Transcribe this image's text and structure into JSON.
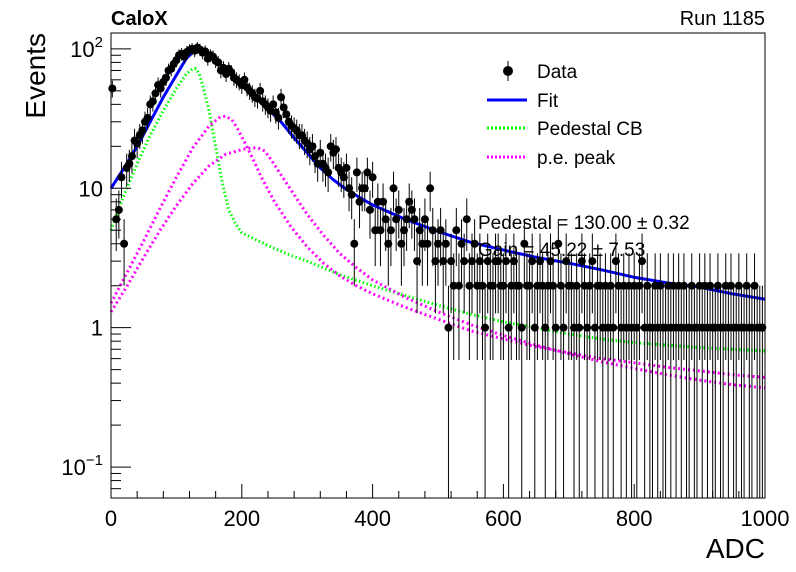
{
  "header": {
    "left": "CaloX",
    "right": "Run 1185"
  },
  "chart_data": {
    "type": "scatter",
    "xlabel": "ADC",
    "ylabel": "Events",
    "xlim": [
      0,
      1000
    ],
    "ylim": [
      0.06,
      130
    ],
    "yscale": "log",
    "grid": false,
    "legend_position": "top-right",
    "x_ticks": [
      "0",
      "200",
      "400",
      "600",
      "800",
      "1000"
    ],
    "y_ticks": [
      {
        "value": 0.1,
        "base": "10",
        "exp": "−1"
      },
      {
        "value": 1,
        "base": "1",
        "exp": ""
      },
      {
        "value": 10,
        "base": "10",
        "exp": ""
      },
      {
        "value": 100,
        "base": "10",
        "exp": "2"
      }
    ],
    "legend": [
      {
        "label": "Data",
        "style": "marker"
      },
      {
        "label": "Fit",
        "style": "line",
        "color": "#0000ff"
      },
      {
        "label": "Pedestal CB",
        "style": "dotted",
        "color": "#00ff00"
      },
      {
        "label": "p.e. peak",
        "style": "dotted",
        "color": "#ff00ff"
      }
    ],
    "annotations": [
      "Pedestal = 130.00 ± 0.32",
      "Gain = 45.22 ± 7.53"
    ],
    "data_points": [
      [
        2,
        52
      ],
      [
        8,
        6
      ],
      [
        12,
        7
      ],
      [
        16,
        12
      ],
      [
        20,
        4
      ],
      [
        24,
        14
      ],
      [
        28,
        15
      ],
      [
        32,
        17
      ],
      [
        36,
        22
      ],
      [
        40,
        21
      ],
      [
        44,
        24
      ],
      [
        48,
        26
      ],
      [
        52,
        30
      ],
      [
        56,
        32
      ],
      [
        60,
        40
      ],
      [
        64,
        42
      ],
      [
        68,
        48
      ],
      [
        72,
        55
      ],
      [
        76,
        52
      ],
      [
        80,
        58
      ],
      [
        84,
        62
      ],
      [
        88,
        70
      ],
      [
        92,
        72
      ],
      [
        96,
        78
      ],
      [
        100,
        83
      ],
      [
        104,
        90
      ],
      [
        108,
        92
      ],
      [
        112,
        88
      ],
      [
        116,
        95
      ],
      [
        120,
        98
      ],
      [
        124,
        100
      ],
      [
        128,
        97
      ],
      [
        132,
        102
      ],
      [
        136,
        99
      ],
      [
        140,
        94
      ],
      [
        144,
        96
      ],
      [
        148,
        85
      ],
      [
        152,
        90
      ],
      [
        156,
        88
      ],
      [
        160,
        82
      ],
      [
        164,
        80
      ],
      [
        168,
        70
      ],
      [
        172,
        73
      ],
      [
        176,
        66
      ],
      [
        180,
        72
      ],
      [
        184,
        68
      ],
      [
        188,
        62
      ],
      [
        192,
        60
      ],
      [
        196,
        58
      ],
      [
        200,
        55
      ],
      [
        204,
        60
      ],
      [
        208,
        53
      ],
      [
        212,
        50
      ],
      [
        216,
        48
      ],
      [
        220,
        45
      ],
      [
        224,
        44
      ],
      [
        228,
        50
      ],
      [
        232,
        42
      ],
      [
        236,
        40
      ],
      [
        240,
        38
      ],
      [
        244,
        36
      ],
      [
        248,
        40
      ],
      [
        252,
        35
      ],
      [
        256,
        32
      ],
      [
        260,
        45
      ],
      [
        264,
        38
      ],
      [
        268,
        34
      ],
      [
        272,
        30
      ],
      [
        276,
        28
      ],
      [
        280,
        27
      ],
      [
        284,
        26
      ],
      [
        288,
        24
      ],
      [
        292,
        24
      ],
      [
        296,
        22
      ],
      [
        300,
        21
      ],
      [
        304,
        19
      ],
      [
        308,
        20
      ],
      [
        312,
        17
      ],
      [
        316,
        15
      ],
      [
        320,
        18
      ],
      [
        324,
        15
      ],
      [
        328,
        14
      ],
      [
        332,
        13
      ],
      [
        336,
        20
      ],
      [
        340,
        18
      ],
      [
        344,
        19
      ],
      [
        348,
        14
      ],
      [
        352,
        13
      ],
      [
        356,
        12
      ],
      [
        360,
        14
      ],
      [
        364,
        10
      ],
      [
        368,
        9
      ],
      [
        372,
        4
      ],
      [
        376,
        13
      ],
      [
        380,
        8
      ],
      [
        384,
        10
      ],
      [
        388,
        10
      ],
      [
        392,
        13
      ],
      [
        396,
        7
      ],
      [
        400,
        12
      ],
      [
        404,
        5
      ],
      [
        408,
        8
      ],
      [
        412,
        5
      ],
      [
        416,
        8
      ],
      [
        420,
        6
      ],
      [
        424,
        4
      ],
      [
        428,
        5
      ],
      [
        432,
        10
      ],
      [
        436,
        6
      ],
      [
        440,
        7
      ],
      [
        444,
        4
      ],
      [
        448,
        5
      ],
      [
        452,
        6
      ],
      [
        456,
        8
      ],
      [
        460,
        7
      ],
      [
        464,
        6
      ],
      [
        468,
        3
      ],
      [
        472,
        5
      ],
      [
        476,
        4
      ],
      [
        480,
        6
      ],
      [
        484,
        4
      ],
      [
        488,
        10
      ],
      [
        492,
        5
      ],
      [
        496,
        3
      ],
      [
        500,
        4
      ],
      [
        504,
        5
      ],
      [
        508,
        3
      ],
      [
        512,
        4
      ],
      [
        516,
        1
      ],
      [
        520,
        3
      ],
      [
        524,
        2
      ],
      [
        528,
        5
      ],
      [
        532,
        2
      ],
      [
        536,
        4
      ],
      [
        540,
        3
      ],
      [
        544,
        6
      ],
      [
        548,
        2
      ],
      [
        552,
        3
      ],
      [
        556,
        4
      ],
      [
        560,
        2
      ],
      [
        564,
        3
      ],
      [
        568,
        2
      ],
      [
        572,
        1
      ],
      [
        576,
        3
      ],
      [
        580,
        2
      ],
      [
        584,
        2
      ],
      [
        588,
        3
      ],
      [
        592,
        3
      ],
      [
        596,
        2
      ],
      [
        600,
        2
      ],
      [
        604,
        3
      ],
      [
        608,
        1
      ],
      [
        612,
        2
      ],
      [
        616,
        3
      ],
      [
        620,
        2
      ],
      [
        624,
        2
      ],
      [
        628,
        1
      ],
      [
        632,
        4
      ],
      [
        636,
        2
      ],
      [
        640,
        2
      ],
      [
        644,
        3
      ],
      [
        648,
        1
      ],
      [
        652,
        2
      ],
      [
        656,
        3
      ],
      [
        660,
        2
      ],
      [
        664,
        1
      ],
      [
        668,
        2
      ],
      [
        672,
        3
      ],
      [
        676,
        2
      ],
      [
        680,
        1
      ],
      [
        684,
        4
      ],
      [
        688,
        2
      ],
      [
        692,
        1
      ],
      [
        696,
        3
      ],
      [
        700,
        2
      ],
      [
        704,
        2
      ],
      [
        708,
        1
      ],
      [
        712,
        2
      ],
      [
        716,
        1
      ],
      [
        720,
        3
      ],
      [
        724,
        2
      ],
      [
        728,
        1
      ],
      [
        732,
        2
      ],
      [
        736,
        3
      ],
      [
        740,
        1
      ],
      [
        744,
        2
      ],
      [
        748,
        2
      ],
      [
        752,
        1
      ],
      [
        756,
        2
      ],
      [
        760,
        1
      ],
      [
        764,
        2
      ],
      [
        768,
        1
      ],
      [
        772,
        3
      ],
      [
        776,
        2
      ],
      [
        780,
        1
      ],
      [
        784,
        2
      ],
      [
        788,
        1
      ],
      [
        792,
        2
      ],
      [
        796,
        1
      ],
      [
        800,
        2
      ],
      [
        804,
        1
      ],
      [
        808,
        2
      ],
      [
        812,
        3
      ],
      [
        816,
        1
      ],
      [
        820,
        2
      ],
      [
        824,
        1
      ],
      [
        828,
        1
      ],
      [
        832,
        2
      ],
      [
        836,
        1
      ],
      [
        840,
        2
      ],
      [
        844,
        1
      ],
      [
        848,
        1
      ],
      [
        852,
        2
      ],
      [
        856,
        1
      ],
      [
        860,
        2
      ],
      [
        864,
        1
      ],
      [
        868,
        2
      ],
      [
        872,
        1
      ],
      [
        876,
        2
      ],
      [
        880,
        1
      ],
      [
        884,
        1
      ],
      [
        888,
        2
      ],
      [
        892,
        1
      ],
      [
        896,
        1
      ],
      [
        900,
        2
      ],
      [
        904,
        1
      ],
      [
        908,
        2
      ],
      [
        912,
        1
      ],
      [
        916,
        2
      ],
      [
        920,
        1
      ],
      [
        924,
        1
      ],
      [
        928,
        2
      ],
      [
        932,
        1
      ],
      [
        936,
        1
      ],
      [
        940,
        2
      ],
      [
        944,
        1
      ],
      [
        948,
        2
      ],
      [
        952,
        1
      ],
      [
        956,
        1
      ],
      [
        960,
        2
      ],
      [
        964,
        1
      ],
      [
        968,
        1
      ],
      [
        972,
        2
      ],
      [
        976,
        1
      ],
      [
        980,
        1
      ],
      [
        984,
        2
      ],
      [
        988,
        1
      ],
      [
        992,
        1
      ],
      [
        996,
        1
      ]
    ],
    "curves": {
      "fit": [
        [
          0,
          10
        ],
        [
          20,
          14
        ],
        [
          40,
          20
        ],
        [
          60,
          30
        ],
        [
          80,
          45
        ],
        [
          100,
          65
        ],
        [
          115,
          85
        ],
        [
          130,
          100
        ],
        [
          140,
          98
        ],
        [
          160,
          82
        ],
        [
          180,
          68
        ],
        [
          200,
          55
        ],
        [
          220,
          45
        ],
        [
          240,
          37
        ],
        [
          260,
          30
        ],
        [
          280,
          23
        ],
        [
          300,
          18
        ],
        [
          320,
          14
        ],
        [
          340,
          11.5
        ],
        [
          360,
          9.8
        ],
        [
          380,
          8.6
        ],
        [
          400,
          7.6
        ],
        [
          450,
          6
        ],
        [
          500,
          4.9
        ],
        [
          550,
          4.1
        ],
        [
          600,
          3.6
        ],
        [
          650,
          3.2
        ],
        [
          700,
          2.9
        ],
        [
          750,
          2.6
        ],
        [
          800,
          2.3
        ],
        [
          850,
          2.1
        ],
        [
          900,
          1.95
        ],
        [
          950,
          1.75
        ],
        [
          1000,
          1.6
        ]
      ],
      "pedestal_cb": [
        [
          0,
          5
        ],
        [
          20,
          9
        ],
        [
          40,
          15
        ],
        [
          60,
          24
        ],
        [
          80,
          36
        ],
        [
          100,
          52
        ],
        [
          115,
          66
        ],
        [
          125,
          72
        ],
        [
          130,
          72
        ],
        [
          135,
          66
        ],
        [
          140,
          55
        ],
        [
          150,
          36
        ],
        [
          160,
          20
        ],
        [
          170,
          11
        ],
        [
          180,
          7
        ],
        [
          190,
          5.6
        ],
        [
          200,
          4.8
        ],
        [
          225,
          4.2
        ],
        [
          250,
          3.7
        ],
        [
          275,
          3.3
        ],
        [
          300,
          3
        ],
        [
          350,
          2.4
        ],
        [
          400,
          2
        ],
        [
          450,
          1.7
        ],
        [
          500,
          1.45
        ],
        [
          550,
          1.25
        ],
        [
          600,
          1.1
        ],
        [
          650,
          1
        ],
        [
          700,
          0.9
        ],
        [
          750,
          0.83
        ],
        [
          800,
          0.78
        ],
        [
          850,
          0.75
        ],
        [
          900,
          0.72
        ],
        [
          950,
          0.7
        ],
        [
          1000,
          0.68
        ]
      ],
      "pe_peak_1": [
        [
          0,
          1.5
        ],
        [
          25,
          2.5
        ],
        [
          50,
          4.2
        ],
        [
          75,
          7.2
        ],
        [
          100,
          12
        ],
        [
          125,
          19.5
        ],
        [
          150,
          28
        ],
        [
          165,
          32
        ],
        [
          175,
          33
        ],
        [
          185,
          31
        ],
        [
          195,
          26
        ],
        [
          205,
          21
        ],
        [
          215,
          17
        ],
        [
          230,
          12
        ],
        [
          250,
          8
        ],
        [
          275,
          5.3
        ],
        [
          300,
          3.8
        ],
        [
          325,
          2.9
        ],
        [
          350,
          2.35
        ],
        [
          375,
          2
        ],
        [
          400,
          1.75
        ],
        [
          450,
          1.4
        ],
        [
          500,
          1.15
        ],
        [
          550,
          0.95
        ],
        [
          600,
          0.83
        ],
        [
          650,
          0.73
        ],
        [
          700,
          0.66
        ],
        [
          750,
          0.6
        ],
        [
          800,
          0.56
        ],
        [
          850,
          0.52
        ],
        [
          900,
          0.49
        ],
        [
          950,
          0.46
        ],
        [
          1000,
          0.44
        ]
      ],
      "pe_peak_2": [
        [
          0,
          1.3
        ],
        [
          25,
          2
        ],
        [
          50,
          3.2
        ],
        [
          75,
          5
        ],
        [
          100,
          7.5
        ],
        [
          125,
          10.8
        ],
        [
          150,
          14.5
        ],
        [
          175,
          17.5
        ],
        [
          200,
          19
        ],
        [
          215,
          19.5
        ],
        [
          225,
          19.5
        ],
        [
          235,
          18.5
        ],
        [
          245,
          16
        ],
        [
          260,
          12.5
        ],
        [
          280,
          9
        ],
        [
          300,
          6.5
        ],
        [
          325,
          4.6
        ],
        [
          350,
          3.4
        ],
        [
          375,
          2.7
        ],
        [
          400,
          2.2
        ],
        [
          450,
          1.65
        ],
        [
          500,
          1.3
        ],
        [
          550,
          1.05
        ],
        [
          600,
          0.88
        ],
        [
          650,
          0.75
        ],
        [
          700,
          0.65
        ],
        [
          750,
          0.57
        ],
        [
          800,
          0.51
        ],
        [
          850,
          0.46
        ],
        [
          900,
          0.42
        ],
        [
          950,
          0.39
        ],
        [
          1000,
          0.37
        ]
      ]
    }
  }
}
